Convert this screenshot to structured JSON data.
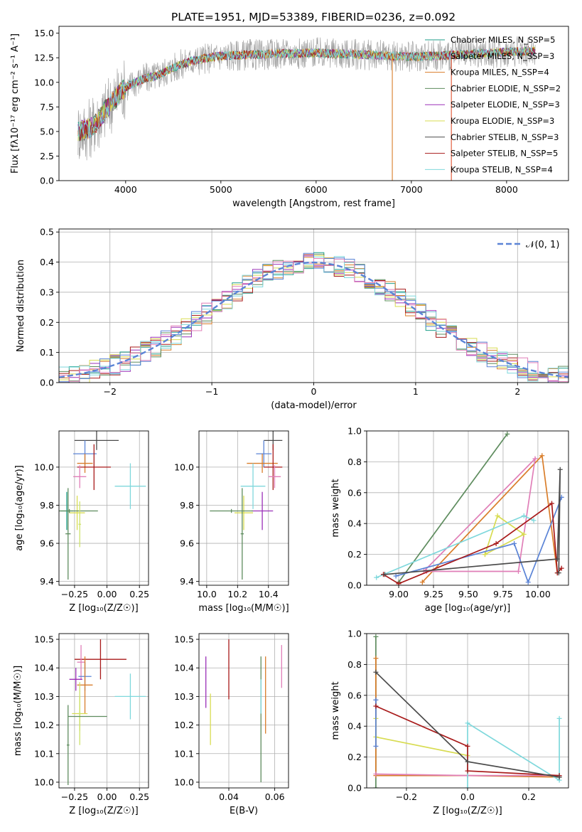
{
  "colors": {
    "teal": "#1f9e89",
    "orange": "#d97d2a",
    "darkorange": "#c87b2e",
    "green": "#5e8c5e",
    "purple": "#9b30b8",
    "yellow": "#d8dc52",
    "gray": "#4a4a4a",
    "red": "#a81a1a",
    "cyan": "#7fd8dc",
    "blue": "#5b84d6",
    "pink": "#e07fb8",
    "lime": "#cde26a"
  },
  "chart_data": [
    {
      "id": "spectrum",
      "type": "line",
      "title": "PLATE=1951, MJD=53389, FIBERID=0236, z=0.092",
      "xlabel": "wavelength [Angstrom, rest frame]",
      "ylabel": "Flux [fλ10⁻¹⁷ erg cm⁻² s⁻¹ A⁻¹]",
      "xlim": [
        3300,
        8650
      ],
      "ylim": [
        0,
        15.7
      ],
      "xticks": [
        4000,
        5000,
        6000,
        7000,
        8000
      ],
      "yticks": [
        0.0,
        2.5,
        5.0,
        7.5,
        10.0,
        12.5,
        15.0
      ],
      "legend": "top-right",
      "legend_entries": [
        {
          "label": "Chabrier MILES, N_SSP=5",
          "color": "#1f9e89"
        },
        {
          "label": "Salpeter MILES, N_SSP=3",
          "color": "#9a9a9a"
        },
        {
          "label": "Kroupa MILES, N_SSP=4",
          "color": "#d97d2a"
        },
        {
          "label": "Chabrier ELODIE, N_SSP=2",
          "color": "#5e8c5e"
        },
        {
          "label": "Salpeter ELODIE, N_SSP=3",
          "color": "#9b30b8"
        },
        {
          "label": "Kroupa ELODIE, N_SSP=3",
          "color": "#d8dc52"
        },
        {
          "label": "Chabrier STELIB, N_SSP=3",
          "color": "#4a4a4a"
        },
        {
          "label": "Salpeter STELIB, N_SSP=5",
          "color": "#a81a1a"
        },
        {
          "label": "Kroupa STELIB, N_SSP=4",
          "color": "#7fd8dc"
        }
      ],
      "continuum_x": [
        3500,
        3600,
        3700,
        3800,
        3900,
        4000,
        4100,
        4200,
        4300,
        4400,
        4500,
        4700,
        5000,
        5300,
        5600,
        6000,
        6500,
        7000,
        7500,
        8000,
        8300
      ],
      "continuum_y": [
        5.0,
        5.2,
        6.0,
        7.3,
        8.5,
        9.5,
        10.0,
        10.4,
        10.6,
        11.0,
        11.5,
        12.2,
        12.7,
        12.8,
        12.9,
        13.0,
        12.8,
        12.6,
        12.8,
        13.1,
        13.2
      ],
      "vlines": [
        {
          "x": 6800,
          "color": "#d97d2a"
        },
        {
          "x": 7420,
          "color": "#e05030"
        }
      ]
    },
    {
      "id": "residuals",
      "type": "bar",
      "xlabel": "(data-model)/error",
      "ylabel": "Normed distribution",
      "xlim": [
        -2.5,
        2.5
      ],
      "ylim": [
        0,
        0.51
      ],
      "xticks": [
        -2,
        -1,
        0,
        1,
        2
      ],
      "yticks": [
        0.0,
        0.1,
        0.2,
        0.3,
        0.4,
        0.5
      ],
      "grid": true,
      "legend": "top-right",
      "legend_entries": [
        {
          "label": "𝒩(0, 1)",
          "color": "#5b84d6"
        }
      ],
      "bin_width": 0.1,
      "series_colors": [
        "#1f9e89",
        "#d97d2a",
        "#5e8c5e",
        "#9b30b8",
        "#d8dc52",
        "#a81a1a",
        "#7fd8dc",
        "#5b84d6",
        "#e07fb8"
      ]
    },
    {
      "id": "age_vs_Z",
      "type": "scatter",
      "xlabel": "Z [log₁₀(Z/Z☉)]",
      "ylabel": "age  [log₁₀(age/yr)]",
      "xlim": [
        -0.37,
        0.32
      ],
      "ylim": [
        9.38,
        10.19
      ],
      "xticks": [
        -0.25,
        0.0,
        0.25
      ],
      "yticks": [
        9.4,
        9.6,
        9.8,
        10.0
      ],
      "grid": true,
      "points": [
        {
          "x": -0.08,
          "y": 10.14,
          "xerr": 0.17,
          "yerr": 0.05,
          "color": "#4a4a4a"
        },
        {
          "x": -0.17,
          "y": 10.07,
          "xerr": 0.09,
          "yerr": 0.07,
          "color": "#5b84d6"
        },
        {
          "x": -0.17,
          "y": 10.02,
          "xerr": 0.06,
          "yerr": 0.05,
          "color": "#d97d2a"
        },
        {
          "x": -0.1,
          "y": 10.0,
          "xerr": 0.13,
          "yerr": 0.12,
          "color": "#a81a1a"
        },
        {
          "x": -0.21,
          "y": 9.95,
          "xerr": 0.05,
          "yerr": 0.06,
          "color": "#e07fb8"
        },
        {
          "x": 0.18,
          "y": 9.9,
          "xerr": 0.12,
          "yerr": 0.12,
          "color": "#7fd8dc"
        },
        {
          "x": -0.31,
          "y": 9.77,
          "xerr": 0.05,
          "yerr": 0.1,
          "color": "#1f9e89"
        },
        {
          "x": -0.23,
          "y": 9.76,
          "xerr": 0.06,
          "yerr": 0.09,
          "color": "#d8dc52"
        },
        {
          "x": -0.3,
          "y": 9.65,
          "xerr": 0.02,
          "yerr": 0.24,
          "color": "#5e8c5e"
        },
        {
          "x": -0.29,
          "y": 9.77,
          "xerr": 0.22,
          "yerr": 0.01,
          "color": "#5e8c5e"
        },
        {
          "x": -0.21,
          "y": 9.7,
          "xerr": 0.01,
          "yerr": 0.12,
          "color": "#cde26a"
        }
      ]
    },
    {
      "id": "age_vs_mass",
      "type": "scatter",
      "xlabel": "mass [log₁₀(M/M☉)]",
      "ylabel": "",
      "xlim": [
        9.95,
        10.53
      ],
      "ylim": [
        9.38,
        10.19
      ],
      "xticks": [
        10.0,
        10.2,
        10.4
      ],
      "yticks": [
        9.4,
        9.6,
        9.8,
        10.0
      ],
      "grid": true,
      "points": [
        {
          "x": 10.43,
          "y": 10.14,
          "xerr": 0.06,
          "yerr": 0.05,
          "color": "#4a4a4a"
        },
        {
          "x": 10.37,
          "y": 10.07,
          "xerr": 0.05,
          "yerr": 0.07,
          "color": "#5b84d6"
        },
        {
          "x": 10.36,
          "y": 10.02,
          "xerr": 0.1,
          "yerr": 0.05,
          "color": "#d97d2a"
        },
        {
          "x": 10.43,
          "y": 10.0,
          "xerr": 0.06,
          "yerr": 0.12,
          "color": "#a81a1a"
        },
        {
          "x": 10.44,
          "y": 9.95,
          "xerr": 0.04,
          "yerr": 0.06,
          "color": "#e07fb8"
        },
        {
          "x": 10.3,
          "y": 9.9,
          "xerr": 0.08,
          "yerr": 0.12,
          "color": "#7fd8dc"
        },
        {
          "x": 10.36,
          "y": 9.77,
          "xerr": 0.07,
          "yerr": 0.1,
          "color": "#9b30b8"
        },
        {
          "x": 10.24,
          "y": 9.76,
          "xerr": 0.06,
          "yerr": 0.09,
          "color": "#d8dc52"
        },
        {
          "x": 10.23,
          "y": 9.65,
          "xerr": 0.01,
          "yerr": 0.24,
          "color": "#5e8c5e"
        },
        {
          "x": 10.16,
          "y": 9.77,
          "xerr": 0.14,
          "yerr": 0.01,
          "color": "#5e8c5e"
        }
      ]
    },
    {
      "id": "weight_vs_age",
      "type": "line",
      "xlabel": "age  [log₁₀(age/yr)]",
      "ylabel": "mass weight",
      "xlim": [
        8.77,
        10.22
      ],
      "ylim": [
        0,
        1
      ],
      "xticks": [
        9.0,
        9.25,
        9.5,
        9.75,
        10.0
      ],
      "yticks": [
        0.0,
        0.2,
        0.4,
        0.6,
        0.8,
        1.0
      ],
      "grid": true,
      "series": [
        {
          "color": "#5e8c5e",
          "x": [
            9.0,
            9.78
          ],
          "y": [
            0.02,
            0.98
          ]
        },
        {
          "color": "#d97d2a",
          "x": [
            9.17,
            10.03,
            10.14
          ],
          "y": [
            0.02,
            0.84,
            0.08
          ]
        },
        {
          "color": "#e07fb8",
          "x": [
            9.18,
            9.98,
            9.86,
            9.2
          ],
          "y": [
            0.09,
            0.82,
            0.09,
            0.09
          ]
        },
        {
          "color": "#d8dc52",
          "x": [
            9.62,
            9.71,
            9.9,
            9.62
          ],
          "y": [
            0.2,
            0.45,
            0.33,
            0.2
          ]
        },
        {
          "color": "#7fd8dc",
          "x": [
            8.84,
            9.9,
            9.97
          ],
          "y": [
            0.05,
            0.45,
            0.42
          ]
        },
        {
          "color": "#5b84d6",
          "x": [
            8.98,
            9.83,
            9.93,
            10.17
          ],
          "y": [
            0.06,
            0.27,
            0.02,
            0.57
          ]
        },
        {
          "color": "#a81a1a",
          "x": [
            8.89,
            9.0,
            9.7,
            10.1,
            10.14,
            10.17
          ],
          "y": [
            0.07,
            0.01,
            0.27,
            0.53,
            0.08,
            0.11
          ]
        },
        {
          "color": "#4a4a4a",
          "x": [
            8.9,
            10.14,
            10.16,
            10.15
          ],
          "y": [
            0.07,
            0.17,
            0.75,
            0.08
          ]
        }
      ]
    },
    {
      "id": "mass_vs_Z",
      "type": "scatter",
      "xlabel": "Z [log₁₀(Z/Z☉)]",
      "ylabel": "mass [log₁₀(M/M☉)]",
      "xlim": [
        -0.37,
        0.32
      ],
      "ylim": [
        9.98,
        10.52
      ],
      "xticks": [
        -0.25,
        0.0,
        0.25
      ],
      "yticks": [
        10.0,
        10.1,
        10.2,
        10.3,
        10.4,
        10.5
      ],
      "grid": true,
      "points": [
        {
          "x": -0.05,
          "y": 10.43,
          "xerr": 0.2,
          "yerr": 0.07,
          "color": "#a81a1a"
        },
        {
          "x": -0.2,
          "y": 10.42,
          "xerr": 0.03,
          "yerr": 0.06,
          "color": "#e07fb8"
        },
        {
          "x": -0.17,
          "y": 10.37,
          "xerr": 0.05,
          "yerr": 0.05,
          "color": "#5b84d6"
        },
        {
          "x": -0.24,
          "y": 10.36,
          "xerr": 0.05,
          "yerr": 0.04,
          "color": "#9b30b8"
        },
        {
          "x": -0.17,
          "y": 10.34,
          "xerr": 0.06,
          "yerr": 0.1,
          "color": "#d97d2a"
        },
        {
          "x": 0.18,
          "y": 10.3,
          "xerr": 0.12,
          "yerr": 0.08,
          "color": "#7fd8dc"
        },
        {
          "x": -0.21,
          "y": 10.24,
          "xerr": 0.06,
          "yerr": 0.06,
          "color": "#d8dc52"
        },
        {
          "x": -0.21,
          "y": 10.24,
          "xerr": 0.01,
          "yerr": 0.11,
          "color": "#cde26a"
        },
        {
          "x": -0.3,
          "y": 10.13,
          "xerr": 0.01,
          "yerr": 0.14,
          "color": "#5e8c5e"
        },
        {
          "x": -0.15,
          "y": 10.23,
          "xerr": 0.15,
          "yerr": 0.0,
          "color": "#5e8c5e"
        }
      ]
    },
    {
      "id": "mass_vs_ebv",
      "type": "scatter",
      "xlabel": "E(B-V)",
      "ylabel": "",
      "xlim": [
        0.027,
        0.066
      ],
      "ylim": [
        9.98,
        10.52
      ],
      "xticks": [
        0.04,
        0.06
      ],
      "yticks": [
        10.0,
        10.1,
        10.2,
        10.3,
        10.4,
        10.5
      ],
      "grid": true,
      "vlines": [
        {
          "x": 0.03,
          "y1": 10.26,
          "y2": 10.44,
          "color": "#9b30b8"
        },
        {
          "x": 0.032,
          "y1": 10.13,
          "y2": 10.31,
          "color": "#d8dc52"
        },
        {
          "x": 0.04,
          "y1": 10.29,
          "y2": 10.5,
          "color": "#a81a1a"
        },
        {
          "x": 0.054,
          "y1": 10.0,
          "y2": 10.44,
          "color": "#5e8c5e"
        },
        {
          "x": 0.054,
          "y1": 10.24,
          "y2": 10.36,
          "color": "#7fd8dc"
        },
        {
          "x": 0.056,
          "y1": 10.17,
          "y2": 10.44,
          "color": "#d97d2a"
        },
        {
          "x": 0.063,
          "y1": 10.33,
          "y2": 10.48,
          "color": "#e07fb8"
        }
      ]
    },
    {
      "id": "weight_vs_Z",
      "type": "line",
      "xlabel": "Z [log₁₀(Z/Z☉)]",
      "ylabel": "mass weight",
      "xlim": [
        -0.33,
        0.33
      ],
      "ylim": [
        0,
        1
      ],
      "xticks": [
        -0.2,
        0.0,
        0.2
      ],
      "yticks": [
        0.0,
        0.2,
        0.4,
        0.6,
        0.8,
        1.0
      ],
      "grid": true,
      "series": [
        {
          "color": "#5e8c5e",
          "x": [
            -0.3,
            -0.3
          ],
          "y": [
            0.0,
            0.98
          ]
        },
        {
          "color": "#d97d2a",
          "x": [
            -0.3,
            -0.3,
            0.0,
            0.3
          ],
          "y": [
            0.84,
            0.08,
            0.08,
            0.07
          ]
        },
        {
          "color": "#e07fb8",
          "x": [
            -0.3,
            0.0,
            0.3
          ],
          "y": [
            0.09,
            0.08,
            0.08
          ]
        },
        {
          "color": "#d8dc52",
          "x": [
            -0.3,
            -0.3,
            0.0
          ],
          "y": [
            0.45,
            0.33,
            0.21
          ]
        },
        {
          "color": "#7fd8dc",
          "x": [
            0.0,
            0.0,
            0.3,
            0.3
          ],
          "y": [
            0.0,
            0.42,
            0.05,
            0.45
          ]
        },
        {
          "color": "#5b84d6",
          "x": [
            -0.3,
            -0.3
          ],
          "y": [
            0.27,
            0.57
          ]
        },
        {
          "color": "#a81a1a",
          "x": [
            -0.3,
            0.0,
            0.0,
            0.3
          ],
          "y": [
            0.53,
            0.27,
            0.11,
            0.08
          ]
        },
        {
          "color": "#4a4a4a",
          "x": [
            -0.3,
            0.0,
            0.3
          ],
          "y": [
            0.75,
            0.17,
            0.07
          ]
        }
      ]
    }
  ]
}
